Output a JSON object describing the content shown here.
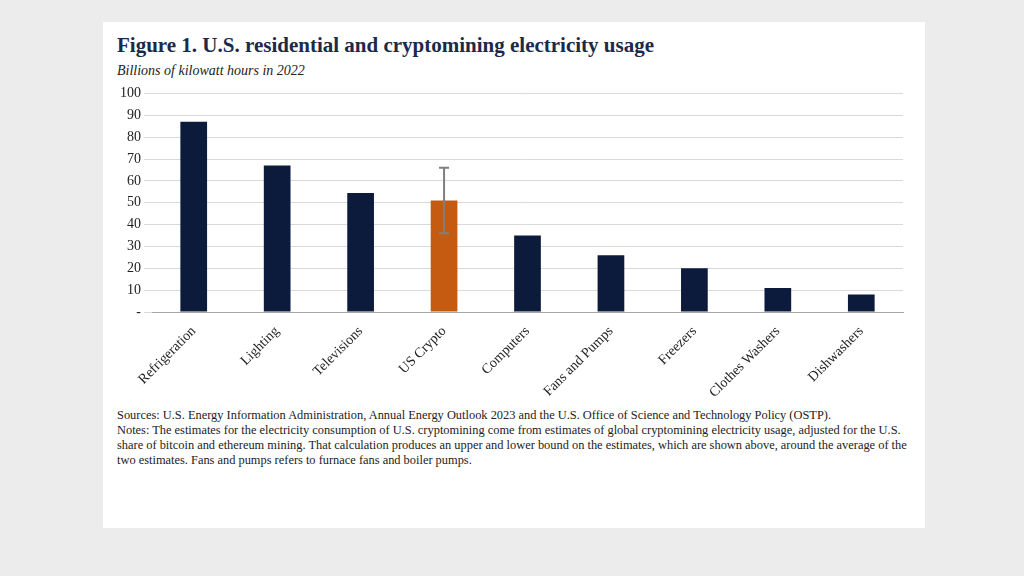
{
  "chart_data": {
    "type": "bar",
    "title": "Figure 1. U.S. residential and cryptomining electricity usage",
    "subtitle": "Billions of kilowatt hours in 2022",
    "categories": [
      "Refrigeration",
      "Lighting",
      "Televisions",
      "US Crypto",
      "Computers",
      "Fans and Pumps",
      "Freezers",
      "Clothes Washers",
      "Dishwashers"
    ],
    "values": [
      87,
      67,
      54.5,
      51,
      35,
      26,
      20,
      11,
      8
    ],
    "colors": [
      "#0c1a3c",
      "#0c1a3c",
      "#0c1a3c",
      "#c55a11",
      "#0c1a3c",
      "#0c1a3c",
      "#0c1a3c",
      "#0c1a3c",
      "#0c1a3c"
    ],
    "error_low": [
      null,
      null,
      null,
      36,
      null,
      null,
      null,
      null,
      null
    ],
    "error_high": [
      null,
      null,
      null,
      66,
      null,
      null,
      null,
      null,
      null
    ],
    "ylim": [
      0,
      100
    ],
    "yticks": [
      {
        "value": 0,
        "label": "-"
      },
      10,
      20,
      30,
      40,
      50,
      60,
      70,
      80,
      90,
      100
    ],
    "grid": true,
    "sources": "Sources: U.S. Energy Information Administration, Annual Energy Outlook 2023 and the U.S. Office of Science and Technology Policy (OSTP).",
    "notes": "Notes: The estimates for the electricity consumption of U.S. cryptomining come from estimates of global cryptomining electricity usage, adjusted for the U.S. share of bitcoin and ethereum mining. That calculation produces an upper and lower bound on the estimates, which are shown above, around the average of the two estimates. Fans and pumps refers to furnace fans and boiler pumps."
  }
}
